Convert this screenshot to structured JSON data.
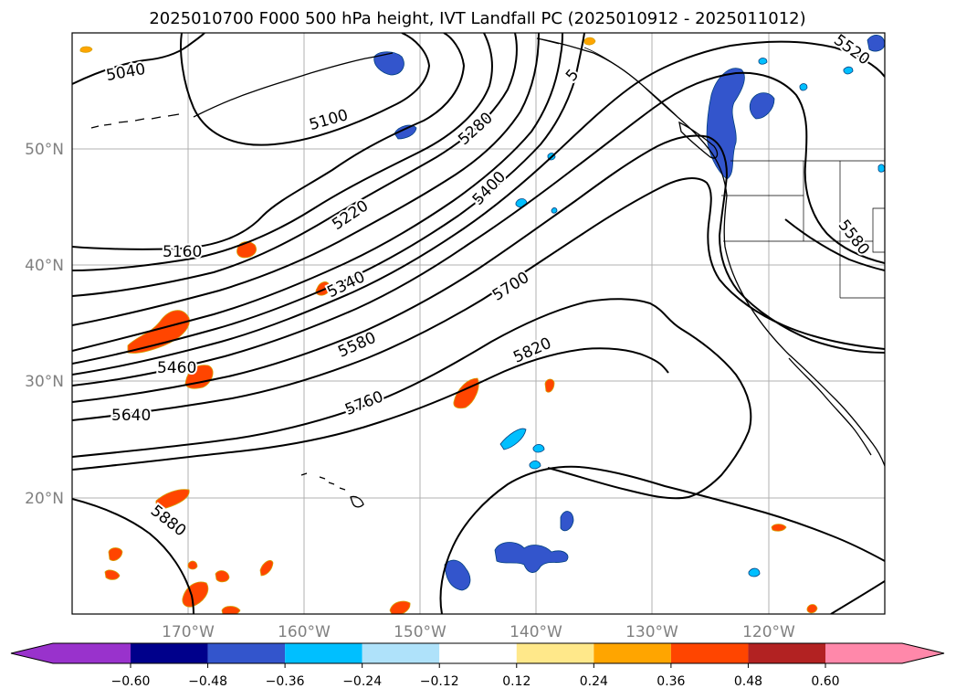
{
  "title": "2025010700 F000 500 hPa height, IVT Landfall PC (2025010912 - 2025011012)",
  "map": {
    "projection": "PlateCarree",
    "lon_range": [
      -180,
      -110
    ],
    "lat_range": [
      10,
      60
    ],
    "lat_labels": [
      "50°N",
      "40°N",
      "30°N",
      "20°N"
    ],
    "lon_labels": [
      "170°W",
      "160°W",
      "150°W",
      "140°W",
      "130°W",
      "120°W"
    ],
    "grid": true
  },
  "contours": {
    "variable": "500 hPa height",
    "color": "#000000",
    "labels": [
      "5040",
      "5100",
      "5160",
      "5220",
      "5280",
      "5340",
      "5400",
      "5460",
      "5520",
      "5580",
      "5580",
      "5640",
      "5700",
      "5760",
      "5820",
      "5880",
      "5"
    ]
  },
  "colorbar": {
    "ticks": [
      "−0.60",
      "−0.48",
      "−0.36",
      "−0.24",
      "−0.12",
      "0.12",
      "0.24",
      "0.36",
      "0.48",
      "0.60"
    ],
    "colors": [
      "#9932cc",
      "#00008b",
      "#3355cc",
      "#00bfff",
      "#afe2fa",
      "#ffffff",
      "#ffe88a",
      "#ffa500",
      "#ff4500",
      "#b22222",
      "#ff88aa"
    ]
  },
  "chart_data": {
    "type": "heatmap",
    "title": "2025010700 F000 500 hPa height, IVT Landfall PC (2025010912 - 2025011012)",
    "xlabel": "",
    "ylabel": "",
    "xlim": [
      -180,
      -110
    ],
    "ylim": [
      10,
      60
    ],
    "contour_levels": [
      5040,
      5100,
      5160,
      5220,
      5280,
      5340,
      5400,
      5460,
      5520,
      5580,
      5640,
      5700,
      5760,
      5820,
      5880
    ],
    "color_levels": [
      -0.6,
      -0.48,
      -0.36,
      -0.24,
      -0.12,
      0.12,
      0.24,
      0.36,
      0.48,
      0.6
    ],
    "legend": "colorbar-bottom"
  }
}
